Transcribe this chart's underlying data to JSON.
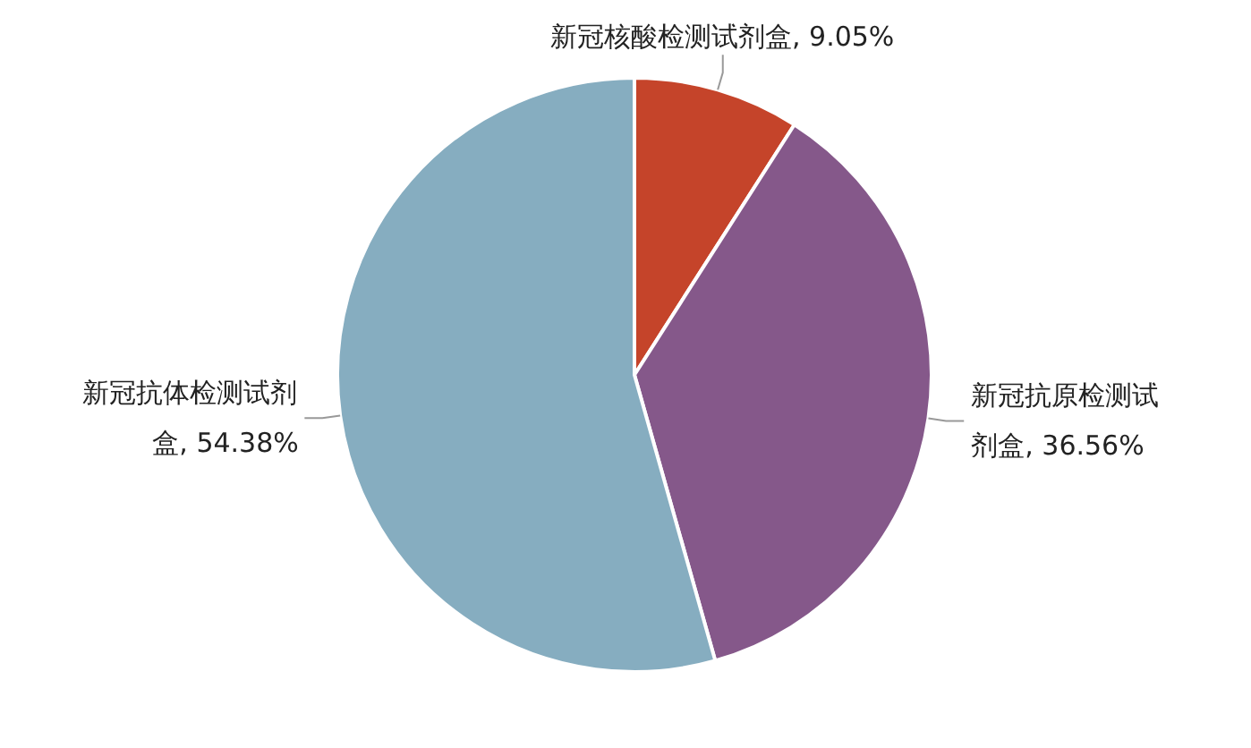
{
  "chart_data": {
    "type": "pie",
    "categories": [
      "新冠核酸检测试剂盒",
      "新冠抗原检测试剂盒",
      "新冠抗体检测试剂盒"
    ],
    "values": [
      9.05,
      36.56,
      54.38
    ],
    "value_labels": [
      ", 9.05%",
      ", 36.56%",
      ", 54.38%"
    ],
    "colors": [
      "#c5442a",
      "#85588a",
      "#86adc0"
    ]
  }
}
